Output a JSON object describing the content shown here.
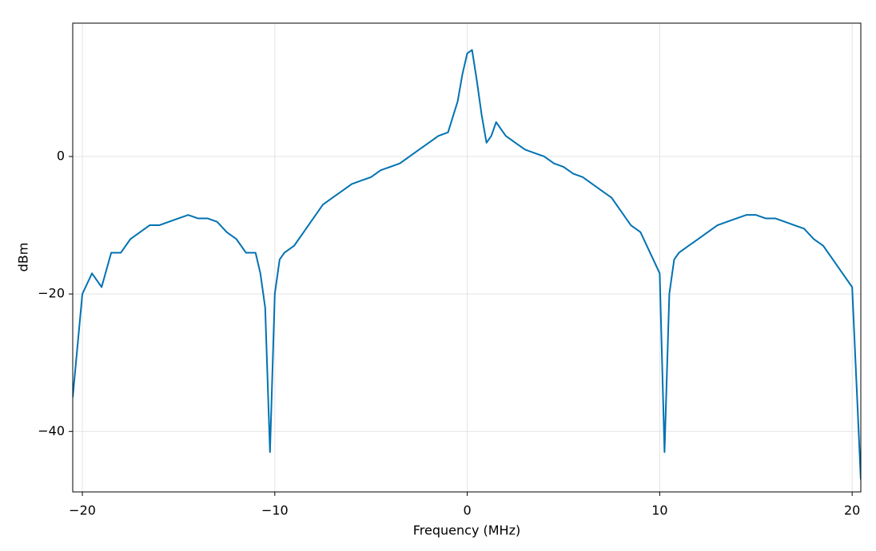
{
  "chart_data": {
    "type": "line",
    "x_label": "Frequency (MHz)",
    "y_label": "dBm",
    "x": [
      -20.5,
      -20,
      -19.5,
      -19,
      -18.5,
      -18,
      -17.5,
      -17,
      -16.5,
      -16,
      -15.5,
      -15,
      -14.5,
      -14,
      -13.5,
      -13,
      -12.5,
      -12,
      -11.5,
      -11,
      -10.75,
      -10.5,
      -10.25,
      -10,
      -9.75,
      -9.5,
      -9,
      -8.5,
      -8,
      -7.5,
      -7,
      -6.5,
      -6,
      -5.5,
      -5,
      -4.5,
      -4,
      -3.5,
      -3,
      -2.5,
      -2,
      -1.5,
      -1,
      -0.5,
      -0.25,
      0,
      0.25,
      0.5,
      0.75,
      1,
      1.25,
      1.5,
      2,
      2.5,
      3,
      3.5,
      4,
      4.5,
      5,
      5.5,
      6,
      6.5,
      7,
      7.5,
      8,
      8.5,
      9,
      9.5,
      10,
      10.25,
      10.5,
      10.75,
      11,
      11.5,
      12,
      12.5,
      13,
      13.5,
      14,
      14.5,
      15,
      15.5,
      16,
      16.5,
      17,
      17.5,
      18,
      18.5,
      19,
      19.5,
      20,
      20.45
    ],
    "series": [
      {
        "color": "#0072b2",
        "values": [
          -35,
          -20,
          -17,
          -19,
          -14,
          -14,
          -12,
          -11,
          -10,
          -10,
          -9.5,
          -9,
          -8.5,
          -9,
          -9,
          -9.5,
          -11,
          -12,
          -14,
          -14,
          -17,
          -22,
          -43,
          -20,
          -15,
          -14,
          -13,
          -11,
          -9,
          -7,
          -6,
          -5,
          -4,
          -3.5,
          -3,
          -2,
          -1.5,
          -1,
          0,
          1,
          2,
          3,
          3.5,
          8,
          12,
          15,
          15.5,
          11,
          6,
          2,
          3,
          5,
          3,
          2,
          1,
          0.5,
          0,
          -1,
          -1.5,
          -2.5,
          -3,
          -4,
          -5,
          -6,
          -8,
          -10,
          -11,
          -14,
          -17,
          -43,
          -20,
          -15,
          -14,
          -13,
          -12,
          -11,
          -10,
          -9.5,
          -9,
          -8.5,
          -8.5,
          -9,
          -9,
          -9.5,
          -10,
          -10.5,
          -12,
          -13,
          -15,
          -17,
          -19,
          -47
        ]
      }
    ],
    "xlim": [
      -20.5,
      20.45
    ],
    "ylim": [
      -48.8,
      19.4
    ],
    "xticks": [
      {
        "value": -20,
        "label": "−20"
      },
      {
        "value": -10,
        "label": "−10"
      },
      0,
      10,
      20
    ],
    "yticks": [
      {
        "value": -40,
        "label": "−40"
      },
      {
        "value": -20,
        "label": "−20"
      },
      0
    ],
    "grid": true
  }
}
